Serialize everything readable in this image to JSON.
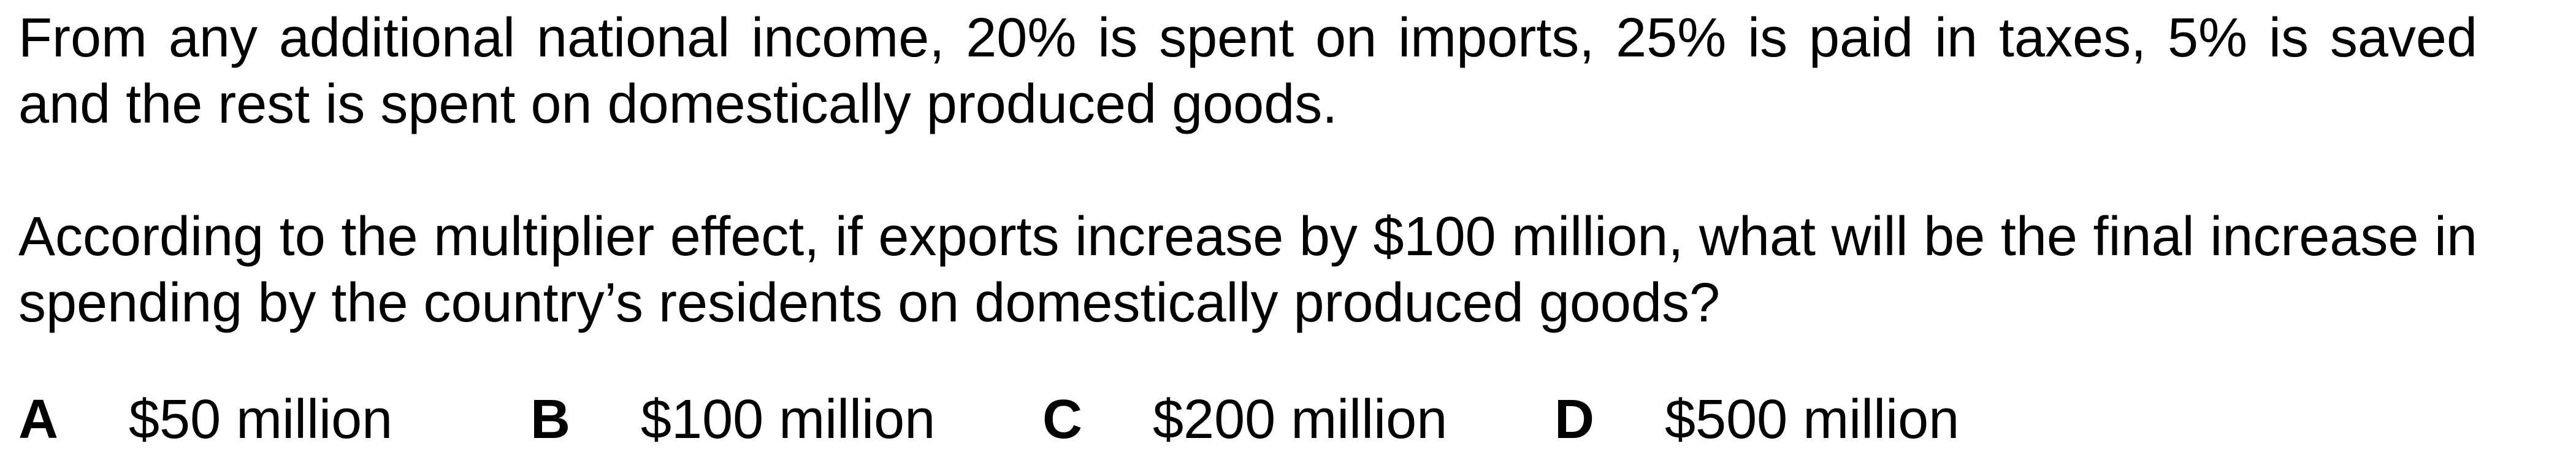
{
  "question": {
    "paragraph_1": "From any additional national income, 20% is spent on imports, 25% is paid in taxes, 5% is saved and the rest is spent on domestically produced goods.",
    "paragraph_2": "According to the multiplier effect, if exports increase by $100 million, what will be the final increase in spending by the country’s residents on domestically produced goods?"
  },
  "options": [
    {
      "letter": "A",
      "value": "$50 million"
    },
    {
      "letter": "B",
      "value": "$100 million"
    },
    {
      "letter": "C",
      "value": "$200 million"
    },
    {
      "letter": "D",
      "value": "$500 million"
    }
  ]
}
